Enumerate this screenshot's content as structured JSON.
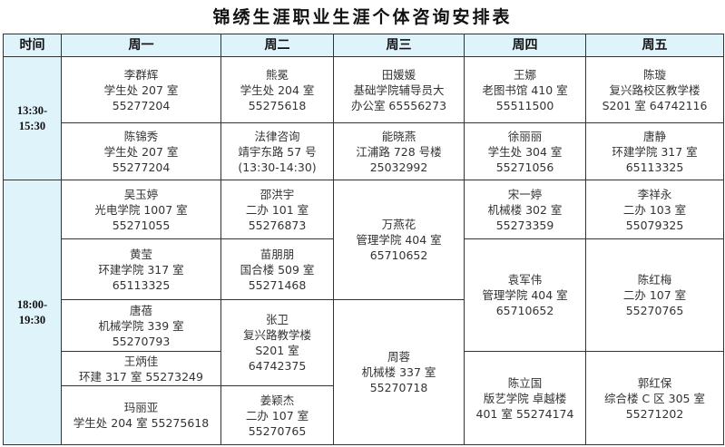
{
  "title": "锦绣生涯职业生涯个体咨询安排表",
  "header": [
    "时间",
    "周一",
    "周二",
    "周三",
    "周四",
    "周五"
  ],
  "sessions": [
    {
      "time": [
        "13:30-",
        "15:30"
      ],
      "monday": [
        [
          "李群辉",
          "学生处 207 室",
          "55277204"
        ],
        [
          "陈锦秀",
          "学生处 207 室",
          "55277204"
        ]
      ],
      "tuesday": [
        [
          "熊冕",
          "学生处 204 室",
          "55275618"
        ],
        [
          "法律咨询",
          "靖宇东路 57 号",
          "(13:30-14:30)"
        ]
      ],
      "wednesday": [
        [
          "田媛媛",
          "基础学院辅导员大",
          "办公室 65556273"
        ],
        [
          "能晓燕",
          "江浦路 728 号楼",
          "25032992"
        ]
      ],
      "thursday": [
        [
          "王娜",
          "老图书馆 410 室",
          "55511500"
        ],
        [
          "徐丽丽",
          "学生处 304 室",
          "55271056"
        ]
      ],
      "friday": [
        [
          "陈璇",
          "复兴路校区教学楼",
          "S201 室  64742116"
        ],
        [
          "唐静",
          "环建学院 317 室",
          "65113325"
        ]
      ]
    },
    {
      "time": [
        "18:00-",
        "19:30"
      ],
      "monday": [
        [
          "吴玉婷",
          "光电学院 1007 室",
          "55271055"
        ],
        [
          "黄莹",
          "环建学院 317 室",
          "65113325"
        ],
        [
          "唐蓓",
          "机械学院 339 室",
          "55270793"
        ],
        [
          "王炳佳",
          "环建 317 室  55273249"
        ],
        [
          "玛丽亚",
          "学生处 204 室  55275618"
        ]
      ],
      "tuesday": [
        [
          "邵洪宇",
          "二办 101 室",
          "55276873"
        ],
        [
          "苗朋朋",
          "国合楼 509 室",
          "55271468"
        ],
        [
          "张卫",
          "复兴路教学楼",
          "S201 室",
          "64742375"
        ],
        [
          "姜颖杰",
          "二办 107 室",
          "55270765"
        ]
      ],
      "wednesday": [
        [
          "万燕花",
          "管理学院 404 室",
          "65710652"
        ],
        [
          "周蓉",
          "机械楼 337 室",
          "55270718"
        ]
      ],
      "thursday": [
        [
          "宋一婷",
          "机械楼 302 室",
          "55273359"
        ],
        [
          "袁军伟",
          "管理学院 404 室",
          "65710652"
        ],
        [
          "陈立国",
          "版艺学院  卓越楼",
          "401 室  55274174"
        ]
      ],
      "friday": [
        [
          "李祥永",
          "二办 103 室",
          "55079325"
        ],
        [
          "陈红梅",
          "二办 107 室",
          "55270765"
        ],
        [
          "郭红保",
          "综合楼 C 区 305 室",
          "55271202"
        ]
      ]
    }
  ]
}
